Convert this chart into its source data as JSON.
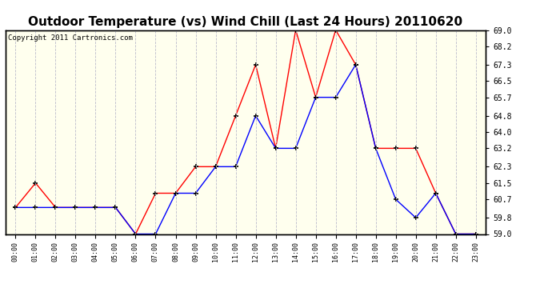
{
  "title": "Outdoor Temperature (vs) Wind Chill (Last 24 Hours) 20110620",
  "copyright": "Copyright 2011 Cartronics.com",
  "x_labels": [
    "00:00",
    "01:00",
    "02:00",
    "03:00",
    "04:00",
    "05:00",
    "06:00",
    "07:00",
    "08:00",
    "09:00",
    "10:00",
    "11:00",
    "12:00",
    "13:00",
    "14:00",
    "15:00",
    "16:00",
    "17:00",
    "18:00",
    "19:00",
    "20:00",
    "21:00",
    "22:00",
    "23:00"
  ],
  "temp_red": [
    60.3,
    61.5,
    60.3,
    60.3,
    60.3,
    60.3,
    59.0,
    61.0,
    61.0,
    62.3,
    62.3,
    64.8,
    67.3,
    63.2,
    69.0,
    65.7,
    69.0,
    67.3,
    63.2,
    63.2,
    63.2,
    61.0,
    59.0,
    59.0
  ],
  "wind_blue": [
    60.3,
    60.3,
    60.3,
    60.3,
    60.3,
    60.3,
    59.0,
    59.0,
    61.0,
    61.0,
    62.3,
    62.3,
    64.8,
    63.2,
    63.2,
    65.7,
    65.7,
    67.3,
    63.2,
    60.7,
    59.8,
    61.0,
    59.0,
    59.0
  ],
  "ylim_min": 59.0,
  "ylim_max": 69.0,
  "yticks": [
    59.0,
    59.8,
    60.7,
    61.5,
    62.3,
    63.2,
    64.0,
    64.8,
    65.7,
    66.5,
    67.3,
    68.2,
    69.0
  ],
  "red_color": "#FF0000",
  "blue_color": "#0000FF",
  "bg_color": "#FFFFEE",
  "grid_color": "#BBBBCC",
  "title_fontsize": 11,
  "copyright_fontsize": 6.5
}
